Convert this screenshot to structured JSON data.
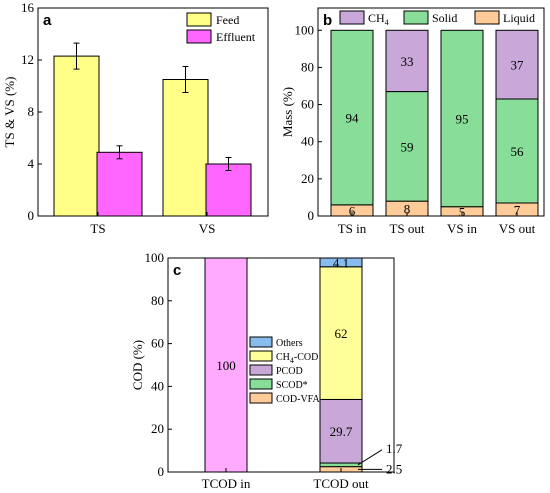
{
  "chart_data": [
    {
      "panel": "a",
      "type": "bar",
      "categories": [
        "TS",
        "VS"
      ],
      "series": [
        {
          "name": "Feed",
          "values": [
            12.3,
            10.5
          ],
          "errors": [
            1.0,
            1.0
          ],
          "color": "#ffff88"
        },
        {
          "name": "Effluent",
          "values": [
            4.9,
            4.0
          ],
          "errors": [
            0.5,
            0.5
          ],
          "color": "#ff66ff"
        }
      ],
      "ylabel": "TS & VS (%)",
      "ylim": [
        0,
        16
      ],
      "yticks": [
        "0",
        "4",
        "8",
        "12",
        "16"
      ],
      "legend": "top-right"
    },
    {
      "panel": "b",
      "type": "bar",
      "stacked": true,
      "categories": [
        "TS in",
        "TS out",
        "VS in",
        "VS out"
      ],
      "series": [
        {
          "name": "Liquid",
          "values": [
            6,
            8,
            5,
            7
          ],
          "color": "#ffcc99"
        },
        {
          "name": "Solid",
          "values": [
            94,
            59,
            95,
            56
          ],
          "color": "#88dd99"
        },
        {
          "name": "CH4",
          "values": [
            0,
            33,
            0,
            37
          ],
          "color": "#c9a8d9"
        }
      ],
      "legend_order": [
        "CH4",
        "Solid",
        "Liquid"
      ],
      "ylabel": "Mass (%)",
      "ylim": [
        0,
        100
      ],
      "yticks": [
        "0",
        "20",
        "40",
        "60",
        "80",
        "100"
      ],
      "legend": "top"
    },
    {
      "panel": "c",
      "type": "bar",
      "stacked": true,
      "categories": [
        "TCOD in",
        "TCOD out"
      ],
      "input_bar": {
        "value": 100,
        "label": "100",
        "color": "#ffaaff"
      },
      "series": [
        {
          "name": "COD-VFA",
          "values": [
            0,
            2.5
          ],
          "label": "2.5",
          "color": "#ffcc99"
        },
        {
          "name": "SCOD*",
          "values": [
            0,
            1.7
          ],
          "label": "1.7",
          "color": "#88dd99"
        },
        {
          "name": "PCOD",
          "values": [
            0,
            29.7
          ],
          "label": "29.7",
          "color": "#c9a8d9"
        },
        {
          "name": "CH4-COD",
          "values": [
            0,
            62
          ],
          "label": "62",
          "color": "#ffff99"
        },
        {
          "name": "Others",
          "values": [
            0,
            4.1
          ],
          "label": "4.1",
          "color": "#88bbee"
        }
      ],
      "ylabel": "COD (%)",
      "ylim": [
        0,
        100
      ],
      "yticks": [
        "0",
        "20",
        "40",
        "60",
        "80",
        "100"
      ],
      "legend": "center-left"
    }
  ]
}
